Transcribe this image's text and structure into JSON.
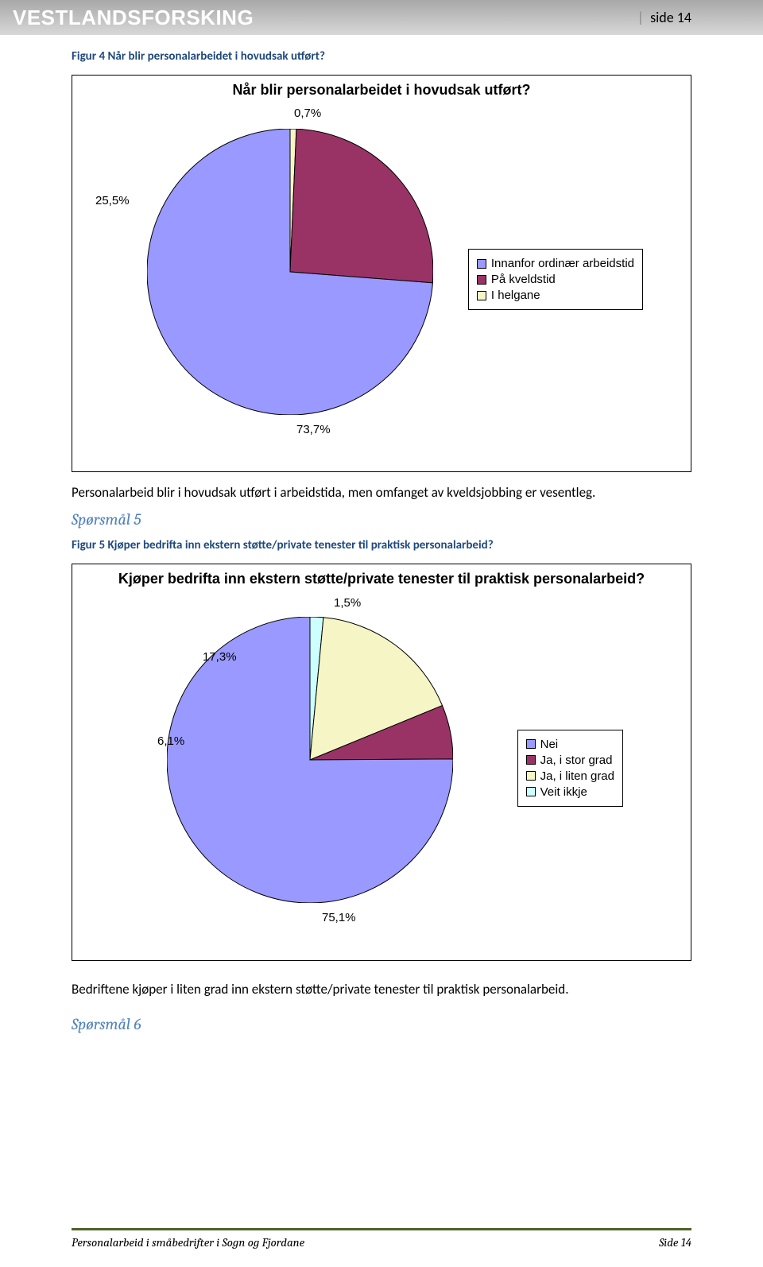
{
  "header": {
    "logo": "VESTLANDSFORSKING",
    "page_bar": "|",
    "page_label": "side 14"
  },
  "caption4": "Figur 4 Når blir personalarbeidet i hovudsak utført?",
  "chart1": {
    "title": "Når blir personalarbeidet i hovudsak utført?",
    "slices": [
      {
        "label": "0,7%",
        "value": 0.7,
        "color": "#f5f5c6"
      },
      {
        "label": "25,5%",
        "value": 25.5,
        "color": "#993366"
      },
      {
        "label": "73,7%",
        "value": 73.7,
        "color": "#9999ff"
      }
    ],
    "legend": [
      {
        "label": "Innanfor ordinær arbeidstid",
        "color": "#9999ff"
      },
      {
        "label": "På kveldstid",
        "color": "#993366"
      },
      {
        "label": "I helgane",
        "color": "#f5f5c6"
      }
    ],
    "label_positions": {
      "l0": [
        "0,7%",
        185,
        -28
      ],
      "l1": [
        "25,5%",
        -65,
        82
      ],
      "l2": [
        "73,7%",
        188,
        370
      ]
    }
  },
  "body1": "Personalarbeid blir i hovudsak utført i arbeidstida, men omfanget av kveldsjobbing er vesentleg.",
  "q5": "Spørsmål 5",
  "caption5": "Figur 5 Kjøper bedrifta inn ekstern støtte/private tenester til praktisk personalarbeid?",
  "chart2": {
    "title": "Kjøper bedrifta inn ekstern støtte/private tenester til praktisk personalarbeid?",
    "slices": [
      {
        "label": "1,5%",
        "value": 1.5,
        "color": "#ccffff"
      },
      {
        "label": "17,3%",
        "value": 17.3,
        "color": "#f5f5c6"
      },
      {
        "label": "6,1%",
        "value": 6.1,
        "color": "#993366"
      },
      {
        "label": "75,1%",
        "value": 75.1,
        "color": "#9999ff"
      }
    ],
    "legend": [
      {
        "label": "Nei",
        "color": "#9999ff"
      },
      {
        "label": "Ja, i stor grad",
        "color": "#993366"
      },
      {
        "label": "Ja, i liten grad",
        "color": "#f5f5c6"
      },
      {
        "label": "Veit ikkje",
        "color": "#ccffff"
      }
    ],
    "label_positions": {
      "l0": [
        "1,5%",
        210,
        -26
      ],
      "l1": [
        "17,3%",
        45,
        42
      ],
      "l2": [
        "6,1%",
        -12,
        148
      ],
      "l3": [
        "75,1%",
        195,
        370
      ]
    }
  },
  "body2": "Bedriftene kjøper i liten grad inn ekstern støtte/private tenester til praktisk personalarbeid.",
  "q6": "Spørsmål 6",
  "footer": {
    "left": "Personalarbeid i småbedrifter i Sogn og Fjordane",
    "right": "Side 14"
  }
}
